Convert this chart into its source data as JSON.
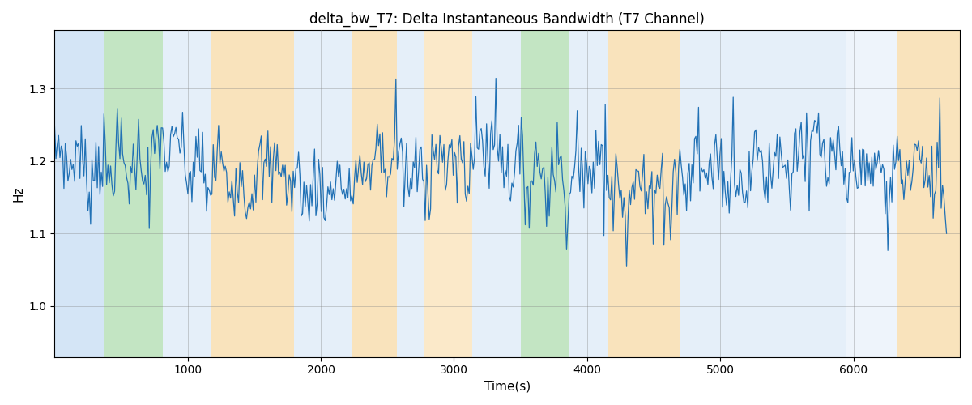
{
  "title": "delta_bw_T7: Delta Instantaneous Bandwidth (T7 Channel)",
  "xlabel": "Time(s)",
  "ylabel": "Hz",
  "xlim": [
    0,
    6800
  ],
  "ylim": [
    0.93,
    1.38
  ],
  "yticks": [
    1.0,
    1.1,
    1.2,
    1.3
  ],
  "xticks": [
    1000,
    2000,
    3000,
    4000,
    5000,
    6000
  ],
  "line_color": "#2171b5",
  "line_width": 0.9,
  "bg_bands": [
    {
      "xmin": 0,
      "xmax": 370,
      "color": "#aaccee",
      "alpha": 0.5
    },
    {
      "xmin": 370,
      "xmax": 810,
      "color": "#88cc88",
      "alpha": 0.5
    },
    {
      "xmin": 810,
      "xmax": 1170,
      "color": "#aaccee",
      "alpha": 0.3
    },
    {
      "xmin": 1170,
      "xmax": 1800,
      "color": "#f5c97a",
      "alpha": 0.5
    },
    {
      "xmin": 1800,
      "xmax": 2230,
      "color": "#aaccee",
      "alpha": 0.3
    },
    {
      "xmin": 2230,
      "xmax": 2570,
      "color": "#f5c97a",
      "alpha": 0.5
    },
    {
      "xmin": 2570,
      "xmax": 2780,
      "color": "#aaccee",
      "alpha": 0.3
    },
    {
      "xmin": 2780,
      "xmax": 3140,
      "color": "#f5c97a",
      "alpha": 0.4
    },
    {
      "xmin": 3140,
      "xmax": 3500,
      "color": "#aaccee",
      "alpha": 0.3
    },
    {
      "xmin": 3500,
      "xmax": 3860,
      "color": "#88cc88",
      "alpha": 0.5
    },
    {
      "xmin": 3860,
      "xmax": 4160,
      "color": "#aaccee",
      "alpha": 0.3
    },
    {
      "xmin": 4160,
      "xmax": 4700,
      "color": "#f5c97a",
      "alpha": 0.5
    },
    {
      "xmin": 4700,
      "xmax": 5950,
      "color": "#aaccee",
      "alpha": 0.3
    },
    {
      "xmin": 5950,
      "xmax": 6330,
      "color": "#aaccee",
      "alpha": 0.2
    },
    {
      "xmin": 6330,
      "xmax": 6800,
      "color": "#f5c97a",
      "alpha": 0.5
    }
  ],
  "signal_seed": 7,
  "signal_n": 670,
  "signal_mean": 1.185,
  "signal_base_std": 0.025,
  "signal_spike_prob": 0.08,
  "signal_spike_std": 0.055
}
